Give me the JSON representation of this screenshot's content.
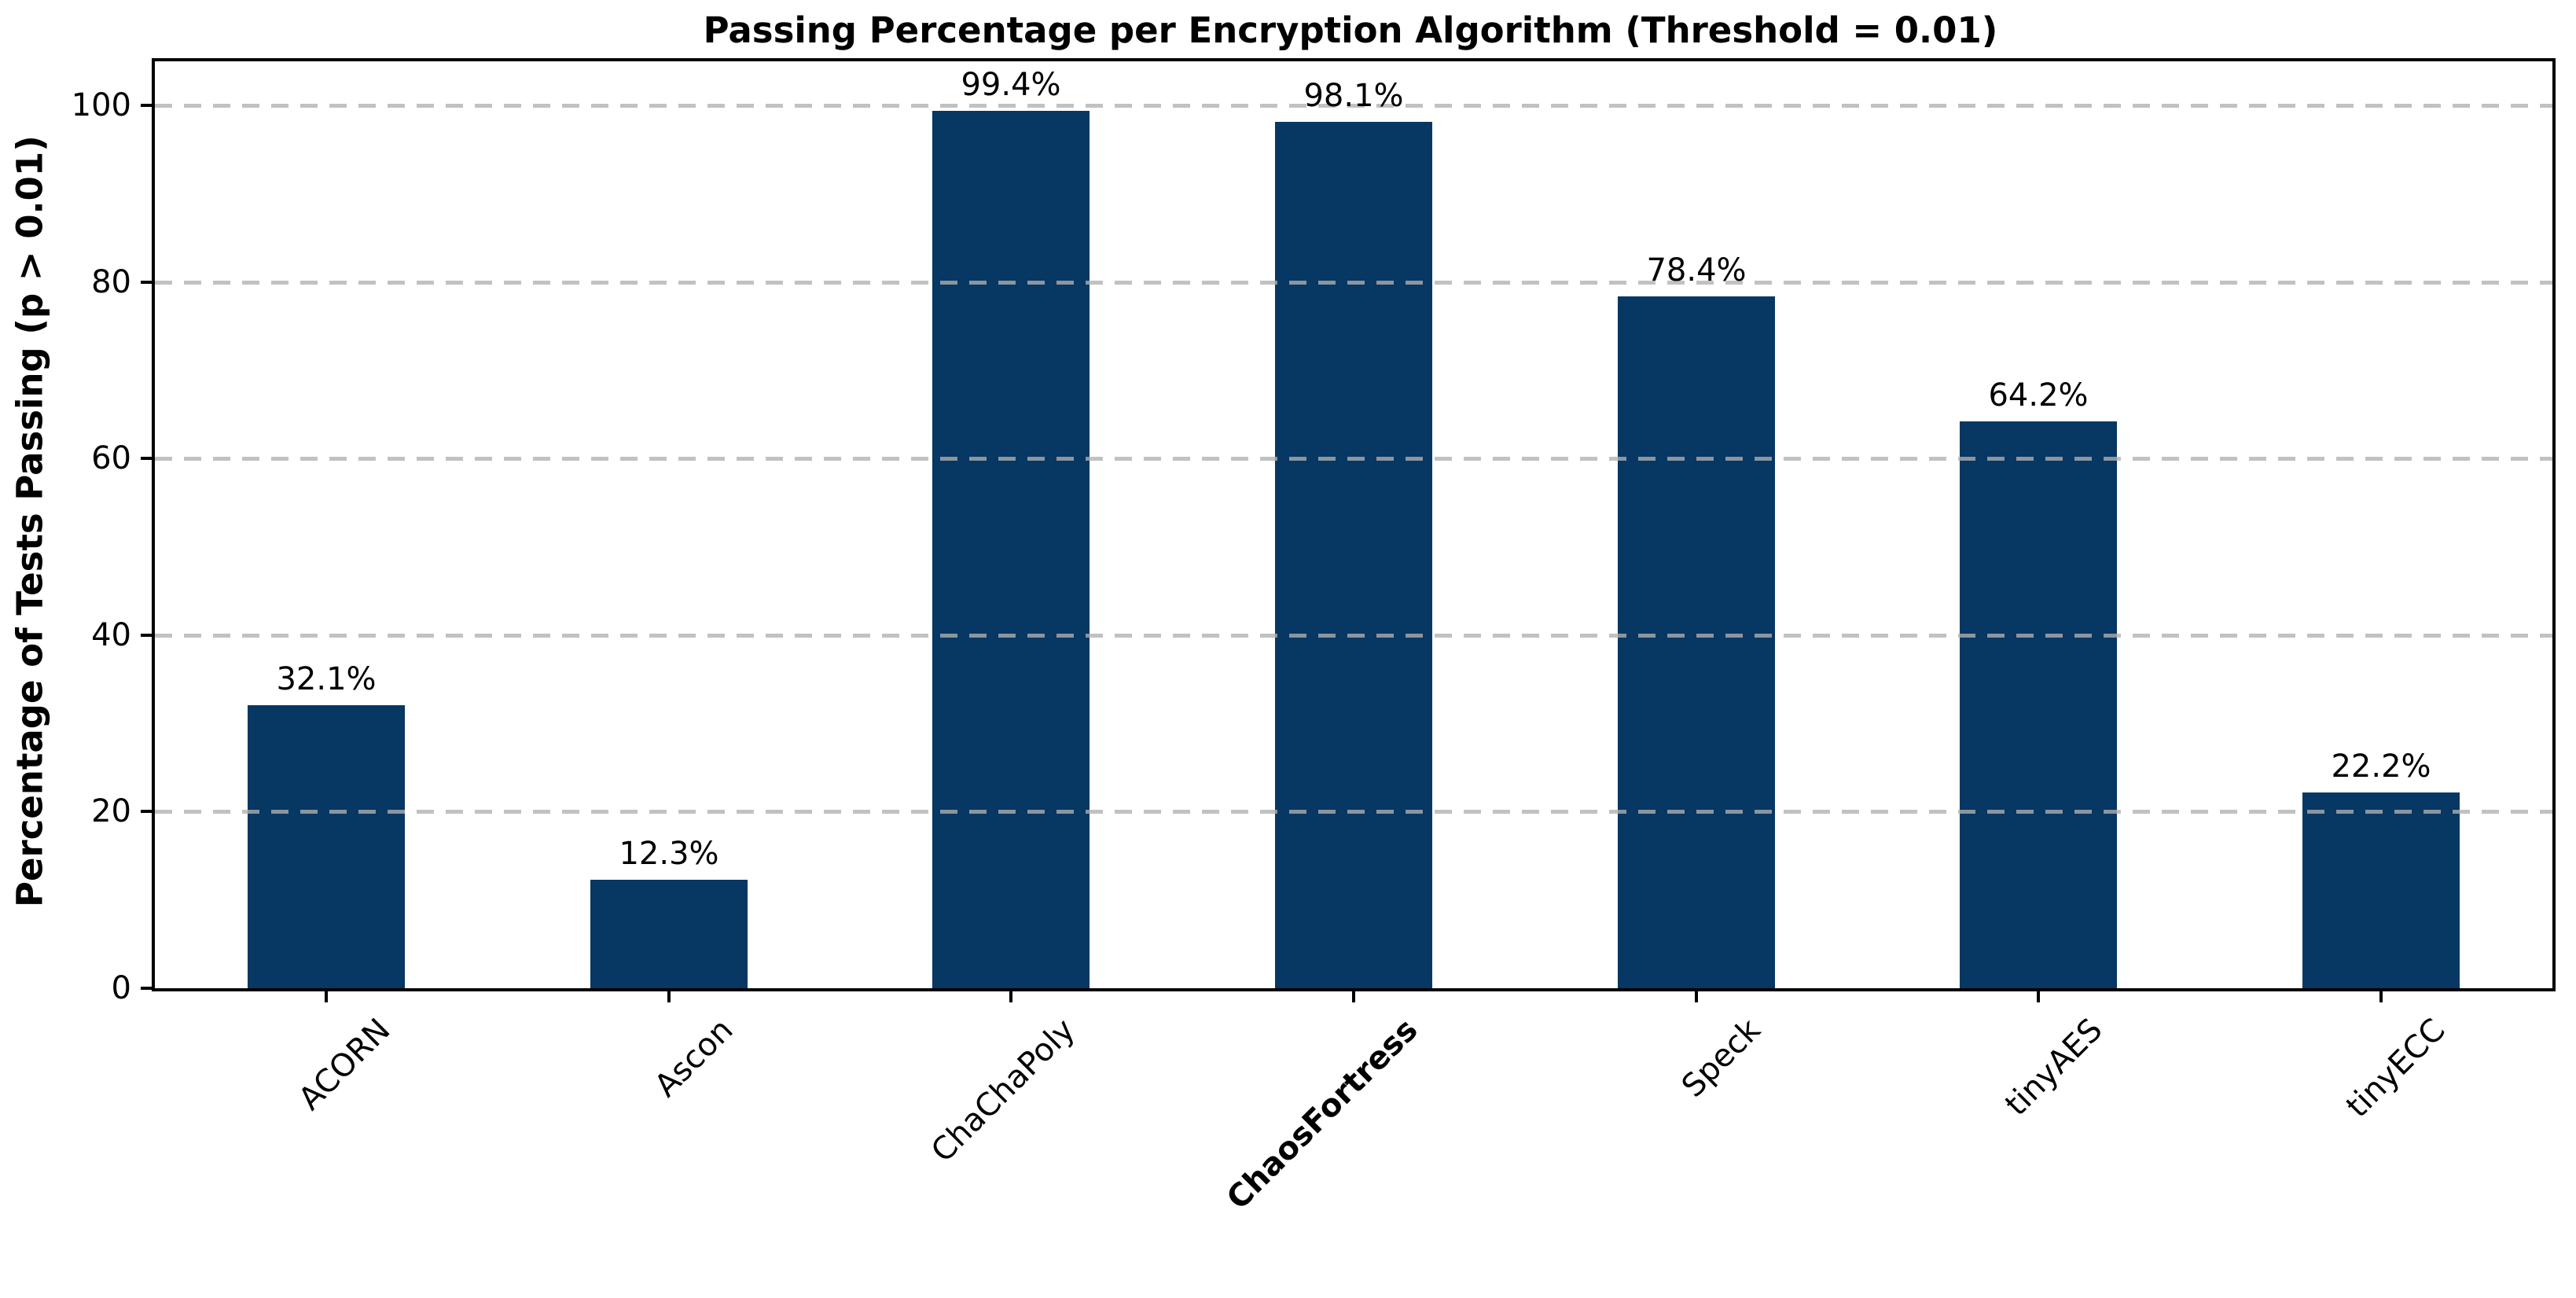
{
  "chart_data": {
    "type": "bar",
    "title": "Passing Percentage per Encryption Algorithm (Threshold = 0.01)",
    "ylabel": "Percentage of Tests Passing (p > 0.01)",
    "xlabel": "",
    "categories": [
      "ACORN",
      "Ascon",
      "ChaChaPoly",
      "ChaosFortress",
      "Speck",
      "tinyAES",
      "tinyECC"
    ],
    "values": [
      32.1,
      12.3,
      99.4,
      98.1,
      78.4,
      64.2,
      22.2
    ],
    "value_labels": [
      "32.1%",
      "12.3%",
      "99.4%",
      "98.1%",
      "78.4%",
      "64.2%",
      "22.2%"
    ],
    "highlighted_category": "ChaosFortress",
    "yticks": [
      0,
      20,
      40,
      60,
      80,
      100
    ],
    "ytick_labels": [
      "0",
      "20",
      "40",
      "60",
      "80",
      "100"
    ],
    "ylim": [
      0,
      105
    ],
    "xtick_rotation_deg": 45,
    "grid": "horizontal-dashed",
    "legend": "none",
    "bar_color": "#073763",
    "grid_color": "#b0b0b0",
    "axis_color": "#000000",
    "background_color": "#ffffff"
  }
}
